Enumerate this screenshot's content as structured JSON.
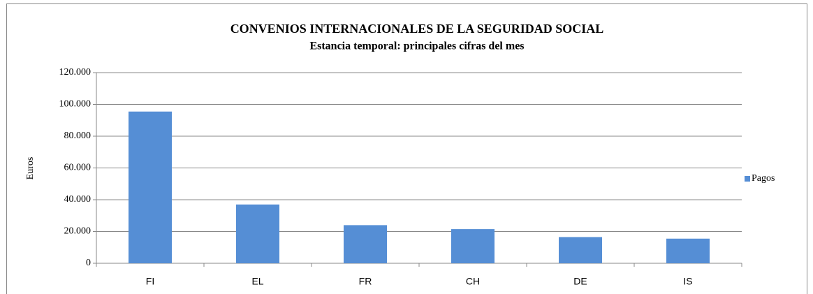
{
  "chart_data": {
    "type": "bar",
    "title": "CONVENIOS INTERNACIONALES DE LA SEGURIDAD SOCIAL",
    "subtitle": "Estancia temporal: principales cifras del mes",
    "y_axis_label": "Euros",
    "categories": [
      "FI",
      "EL",
      "FR",
      "CH",
      "DE",
      "IS"
    ],
    "series": [
      {
        "name": "Pagos",
        "color": "#558ed5",
        "values": [
          95500,
          37000,
          24000,
          21500,
          16500,
          15500
        ]
      }
    ],
    "ylim": [
      0,
      120000
    ],
    "yticks": [
      0,
      {
        "value": 20000,
        "label": "20.000"
      },
      {
        "value": 40000,
        "label": "40.000"
      },
      {
        "value": 60000,
        "label": "60.000"
      },
      {
        "value": 80000,
        "label": "80.000"
      },
      {
        "value": 100000,
        "label": "100.000"
      },
      {
        "value": 120000,
        "label": "120.000"
      }
    ],
    "grid": true,
    "legend": "right"
  }
}
